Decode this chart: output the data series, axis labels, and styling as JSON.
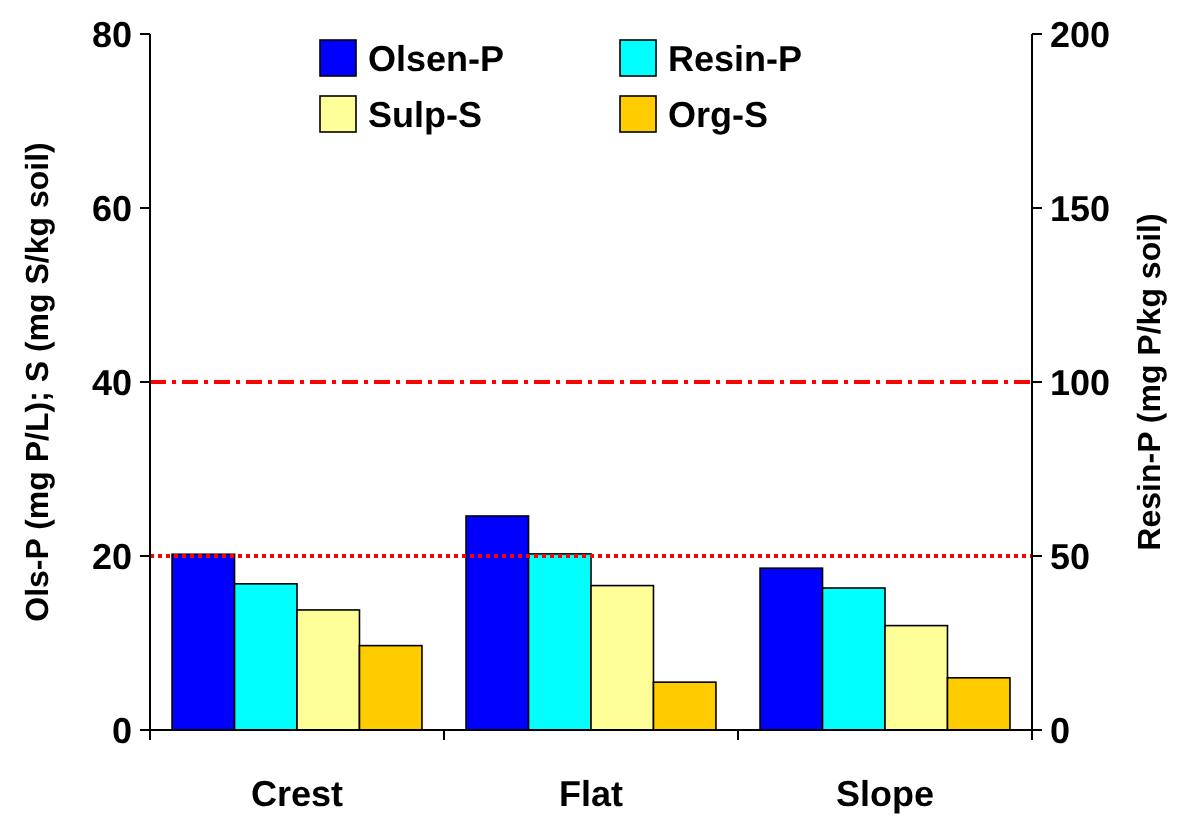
{
  "chart_data": {
    "type": "bar",
    "ylabel": "Ols-P (mg P/L); S (mg S/kg soil)",
    "y2label": "Resin-P (mg P/kg soil)",
    "categories": [
      "Crest",
      "Flat",
      "Slope"
    ],
    "series": [
      {
        "name": "Olsen-P",
        "color": "#0000ff",
        "values": [
          20.2,
          24.6,
          18.6
        ]
      },
      {
        "name": "Resin-P",
        "color": "#00ffff",
        "values": [
          42,
          50.6,
          40.8
        ],
        "axis": "y2"
      },
      {
        "name": "Sulp-S",
        "color": "#ffff99",
        "values": [
          13.8,
          16.6,
          12
        ]
      },
      {
        "name": "Org-S",
        "color": "#ffcc00",
        "values": [
          9.7,
          5.5,
          6
        ]
      }
    ],
    "ylim": [
      0,
      80
    ],
    "yticks": [
      0,
      20,
      40,
      60,
      80
    ],
    "y2lim": [
      0,
      200
    ],
    "y2ticks": [
      0,
      50,
      100,
      150,
      200
    ],
    "ref_lines": [
      {
        "axis": "y",
        "value": 40,
        "color": "#ff0000",
        "line_style": "dashdot"
      },
      {
        "axis": "y",
        "value": 20,
        "color": "#ff0000",
        "line_style": "dotted"
      }
    ],
    "legend": "top",
    "grid": false
  }
}
